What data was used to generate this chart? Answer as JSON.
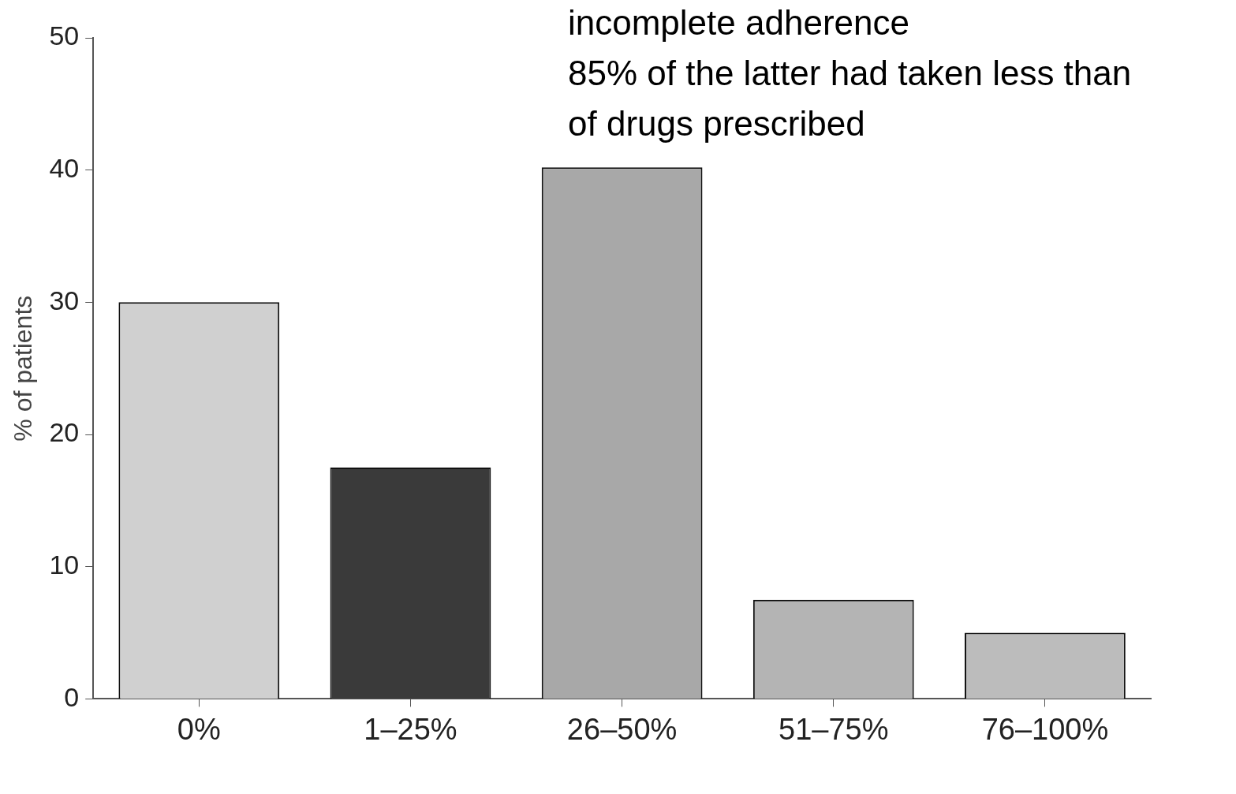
{
  "chart_data": {
    "type": "bar",
    "ylabel": "% of patients",
    "annotations": [
      "incomplete adherence",
      "85% of the latter had taken less than",
      "of drugs prescribed"
    ],
    "categories": [
      "0%",
      "1–25%",
      "26–50%",
      "51–75%",
      "76–100%"
    ],
    "values": [
      30,
      17.5,
      40.2,
      7.5,
      5
    ],
    "colors": [
      "#d0d0d0",
      "#3a3a3a",
      "#a8a8a8",
      "#b4b4b4",
      "#bcbcbc"
    ],
    "ylim": [
      0,
      50
    ],
    "yticks": [
      0,
      10,
      20,
      30,
      40,
      50
    ],
    "grid": false,
    "legend": false
  }
}
